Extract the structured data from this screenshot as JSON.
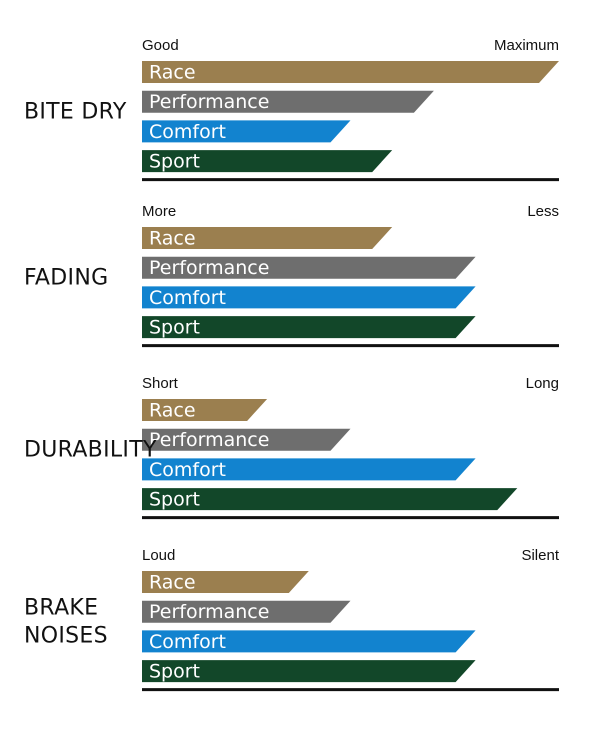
{
  "chart_data": {
    "type": "bar",
    "orientation": "horizontal",
    "categories": [
      "Race",
      "Performance",
      "Comfort",
      "Sport"
    ],
    "colors": {
      "Race": "#9b7f4f",
      "Performance": "#6e6e6e",
      "Comfort": "#1283cf",
      "Sport": "#124729"
    },
    "xlim": [
      0,
      100
    ],
    "grid": false,
    "sections": [
      {
        "title": [
          "BITE DRY"
        ],
        "left_label": "Good",
        "right_label": "Maximum",
        "values": [
          100,
          70,
          50,
          60
        ]
      },
      {
        "title": [
          "FADING"
        ],
        "left_label": "More",
        "right_label": "Less",
        "values": [
          60,
          80,
          80,
          80
        ]
      },
      {
        "title": [
          "DURABILITY"
        ],
        "left_label": "Short",
        "right_label": "Long",
        "values": [
          30,
          50,
          80,
          90
        ]
      },
      {
        "title": [
          "BRAKE",
          "NOISES"
        ],
        "left_label": "Loud",
        "right_label": "Silent",
        "values": [
          40,
          50,
          80,
          80
        ]
      }
    ]
  }
}
